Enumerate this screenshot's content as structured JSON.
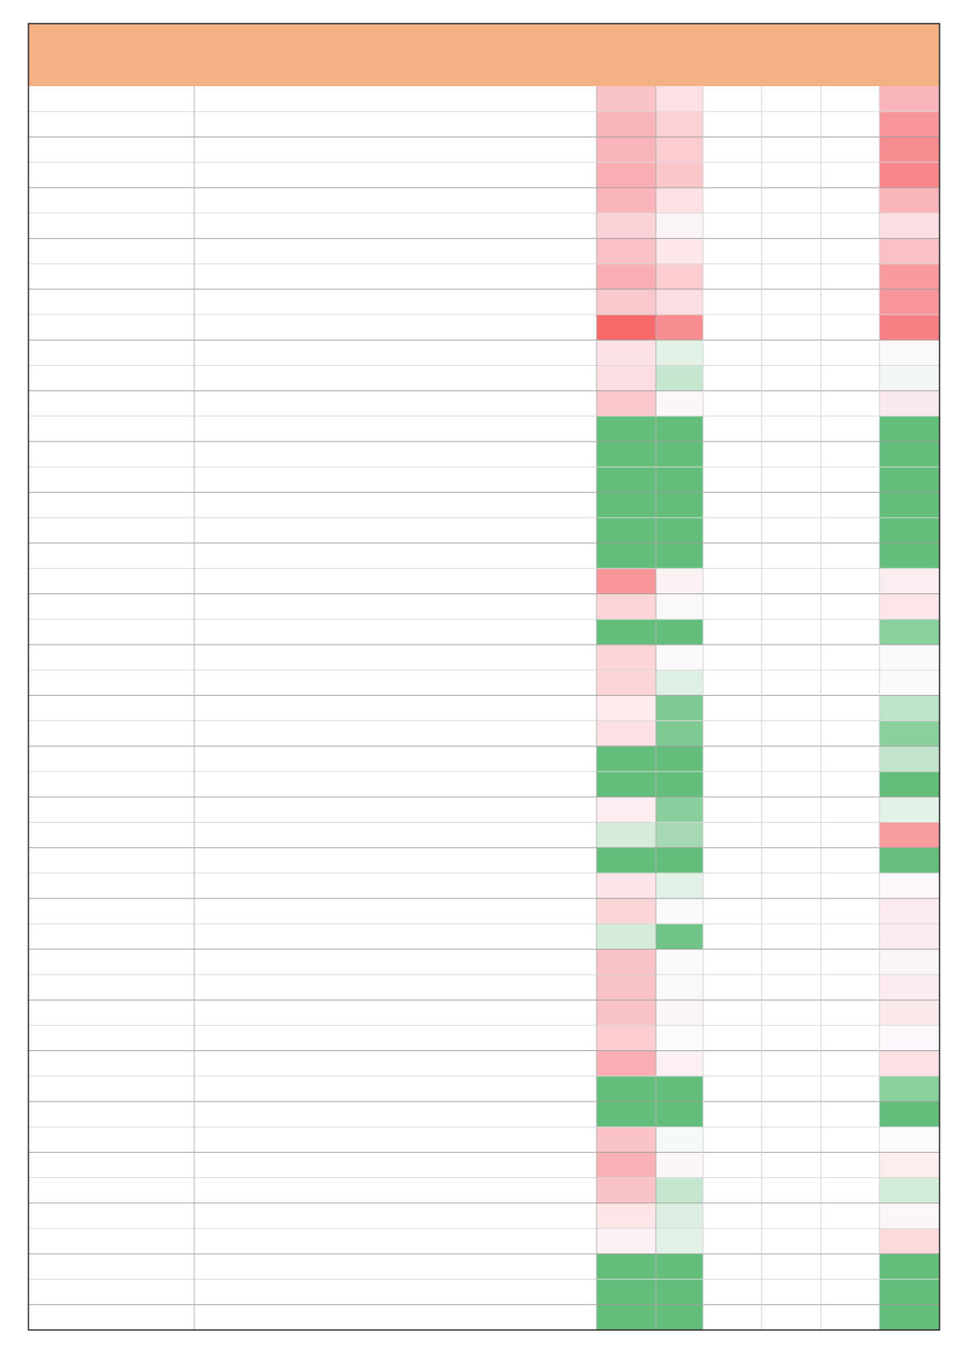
{
  "table": {
    "header_color": "#f4b183",
    "green": "#63be7b",
    "rows": [
      [
        "#f9c3c8",
        "#fde0e4",
        "#f9b5b9"
      ],
      [
        "#f9b5ba",
        "#fbd1d5",
        "#f8959a"
      ],
      [
        "#f9b5ba",
        "#fbcdd1",
        "#f88d91"
      ],
      [
        "#f8aeb3",
        "#fbc6ca",
        "#f8868a"
      ],
      [
        "#f9b5ba",
        "#fde1e5",
        "#f9b5b9"
      ],
      [
        "#fad3d8",
        "#faf4f6",
        "#fcdde1"
      ],
      [
        "#f9c0c5",
        "#fde7ea",
        "#f9c0c5"
      ],
      [
        "#f8aeb3",
        "#fbcdd1",
        "#f89a9e"
      ],
      [
        "#f9c8cc",
        "#fcdde1",
        "#f8959a"
      ],
      [
        "#f8696b",
        "#f88d91",
        "#f87f83"
      ],
      [
        "#fce2e6",
        "#e2f2e6",
        "#fbf8fa"
      ],
      [
        "#fcdde1",
        "#c6e7cf",
        "#f2f7f4"
      ],
      [
        "#fac8cc",
        "#fbf7f9",
        "#fbeaed"
      ],
      [
        "#63be7b",
        "#63be7b",
        "#63be7b"
      ],
      [
        "#63be7b",
        "#63be7b",
        "#63be7b"
      ],
      [
        "#63be7b",
        "#63be7b",
        "#63be7b"
      ],
      [
        "#63be7b",
        "#63be7b",
        "#63be7b"
      ],
      [
        "#63be7b",
        "#63be7b",
        "#63be7b"
      ],
      [
        "#63be7b",
        "#63be7b",
        "#63be7b"
      ],
      [
        "#f8969a",
        "#fcf2f4",
        "#fbeef0"
      ],
      [
        "#fcd5d9",
        "#fbf8fa",
        "#fce6e9"
      ],
      [
        "#63be7b",
        "#63be7b",
        "#8ad09d"
      ],
      [
        "#fcd5d9",
        "#fafafc",
        "#fafafc"
      ],
      [
        "#fcd5d9",
        "#deefe3",
        "#fafafc"
      ],
      [
        "#fdebee",
        "#7fca93",
        "#bfe3c9"
      ],
      [
        "#fce0e4",
        "#7fca93",
        "#8ad09d"
      ],
      [
        "#63be7b",
        "#63be7b",
        "#c1e4ca"
      ],
      [
        "#63be7b",
        "#63be7b",
        "#63be7b"
      ],
      [
        "#fdedf0",
        "#8ace9d",
        "#e3f1e7"
      ],
      [
        "#d5ecdb",
        "#a6d9b3",
        "#f89ca0"
      ],
      [
        "#63be7b",
        "#63be7b",
        "#66bf7e"
      ],
      [
        "#fce5e8",
        "#e3f2e7",
        "#fcf8fb"
      ],
      [
        "#fcd5d9",
        "#faf9fb",
        "#fcecef"
      ],
      [
        "#d5ecdb",
        "#71c487",
        "#fcecef"
      ],
      [
        "#f9c2c6",
        "#fafafc",
        "#fbf5f8"
      ],
      [
        "#f9c2c6",
        "#fbf8fa",
        "#fcecef"
      ],
      [
        "#f9c2c6",
        "#fbf5f7",
        "#fce9ec"
      ],
      [
        "#fbcdd1",
        "#fbfbfd",
        "#fbf7fa"
      ],
      [
        "#f8aeb3",
        "#fcf0f2",
        "#fce0e3"
      ],
      [
        "#63be7b",
        "#63be7b",
        "#8ad09d"
      ],
      [
        "#63be7b",
        "#63be7b",
        "#63be7b"
      ],
      [
        "#f9c3c7",
        "#f5f9f8",
        "#fafbfc"
      ],
      [
        "#f8b1b5",
        "#fbf7f9",
        "#fcedef"
      ],
      [
        "#f9c3c7",
        "#c6e7cf",
        "#d3ebd9"
      ],
      [
        "#fde5e8",
        "#dcefe2",
        "#fbf7f9"
      ],
      [
        "#fcf1f4",
        "#e3f2e7",
        "#fcd9dd"
      ],
      [
        "#63be7b",
        "#63be7b",
        "#63be7b"
      ],
      [
        "#63be7b",
        "#63be7b",
        "#63be7b"
      ],
      [
        "#63be7b",
        "#63be7b",
        "#63be7b"
      ]
    ]
  }
}
